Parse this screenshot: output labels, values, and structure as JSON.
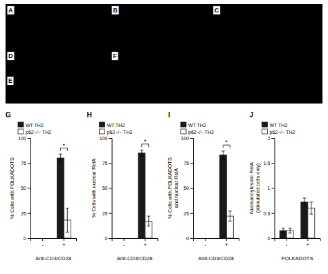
{
  "chart_data": [
    {
      "type": "image",
      "annotations": [
        "A",
        "B",
        "C",
        "D",
        "E",
        "F"
      ]
    },
    {
      "type": "bar",
      "title": "G",
      "x_label": "Anti-CD3/CD28",
      "y_label": "% Cells with POLKADOTS",
      "categories": [
        "-",
        "+"
      ],
      "series": [
        {
          "name": "WT TH2",
          "color": "#1a1a1a",
          "values": [
            0,
            80
          ],
          "errors": [
            0,
            4
          ]
        },
        {
          "name": "p62−/− TH2",
          "color": "#ffffff",
          "values": [
            0,
            18
          ],
          "errors": [
            0,
            12
          ]
        }
      ],
      "ylim": [
        0,
        100
      ],
      "yticks": [
        0,
        25,
        50,
        75,
        100
      ],
      "legend": "upper left",
      "annotations": [
        "*"
      ]
    },
    {
      "type": "bar",
      "title": "H",
      "x_label": "Anti-CD3/CD28",
      "y_label": "% Cells with nuclear RelA",
      "categories": [
        "-",
        "+"
      ],
      "series": [
        {
          "name": "WT TH2",
          "color": "#1a1a1a",
          "values": [
            0,
            85
          ],
          "errors": [
            0,
            3
          ]
        },
        {
          "name": "p62−/− TH2",
          "color": "#ffffff",
          "values": [
            0,
            17
          ],
          "errors": [
            0,
            5
          ]
        }
      ],
      "ylim": [
        0,
        100
      ],
      "yticks": [
        0,
        25,
        50,
        75,
        100
      ],
      "legend": "upper left",
      "annotations": [
        "*"
      ]
    },
    {
      "type": "bar",
      "title": "I",
      "x_label": "Anti-CD3/CD28",
      "y_label": "% Cells with POLKADOTS\nand nuclear RelA",
      "categories": [
        "-",
        "+"
      ],
      "series": [
        {
          "name": "WT TH2",
          "color": "#1a1a1a",
          "values": [
            0,
            83
          ],
          "errors": [
            0,
            4
          ]
        },
        {
          "name": "p62−/− TH2",
          "color": "#ffffff",
          "values": [
            0,
            22
          ],
          "errors": [
            0,
            5
          ]
        }
      ],
      "ylim": [
        0,
        100
      ],
      "yticks": [
        0,
        25,
        50,
        75,
        100
      ],
      "legend": "upper left",
      "annotations": [
        "*"
      ]
    },
    {
      "type": "bar",
      "title": "J",
      "x_label": "POLKADOTS",
      "y_label": "Nuclear/cytosolic RelA\n(stimulated cells only)",
      "categories": [
        "-",
        "+"
      ],
      "series": [
        {
          "name": "WT TH2",
          "color": "#1a1a1a",
          "values": [
            0.15,
            0.72
          ],
          "errors": [
            0.05,
            0.08
          ]
        },
        {
          "name": "p62−/− TH2",
          "color": "#ffffff",
          "values": [
            0.15,
            0.6
          ],
          "errors": [
            0.05,
            0.12
          ]
        }
      ],
      "ylim": [
        0,
        2
      ],
      "yticks": [
        0,
        0.5,
        1,
        1.5,
        2
      ],
      "legend": "upper left"
    }
  ]
}
